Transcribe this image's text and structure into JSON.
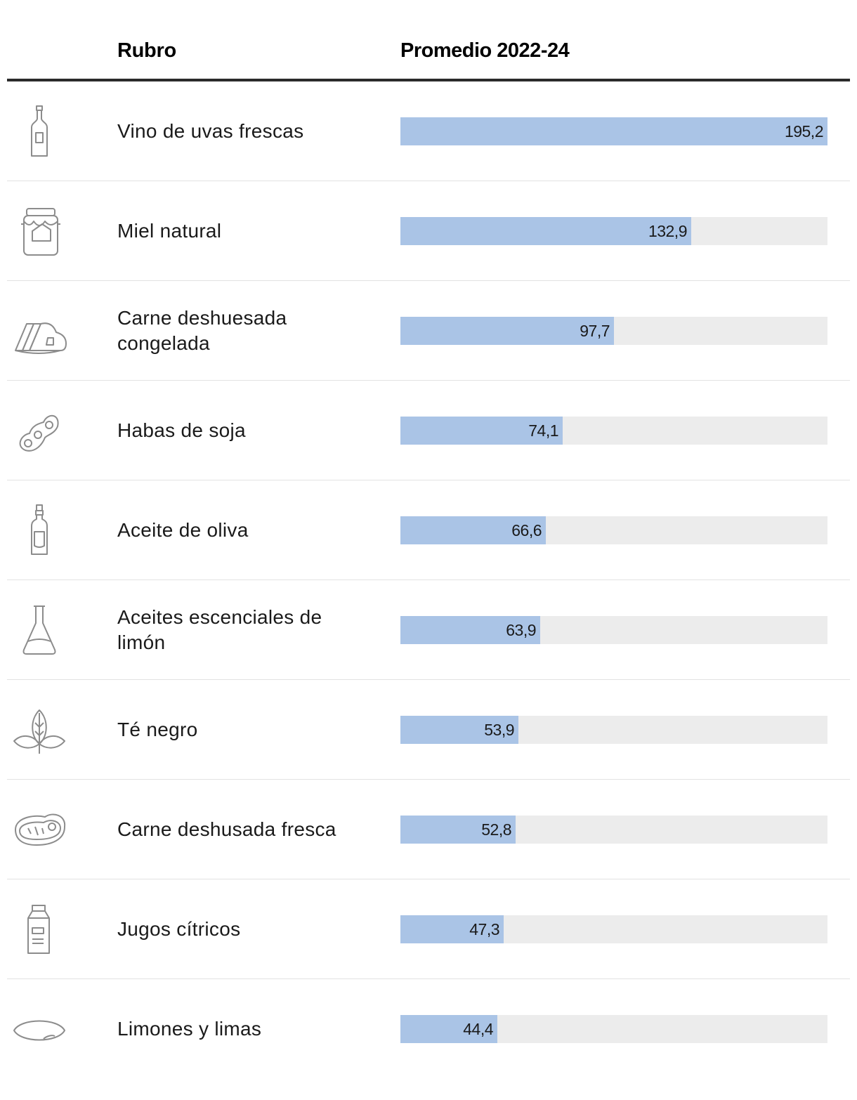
{
  "header": {
    "col_rubro": "Rubro",
    "col_value": "Promedio 2022-24"
  },
  "colors": {
    "bar": "#aac4e6",
    "track": "#ececec",
    "icon_stroke": "#8c8c8c"
  },
  "chart_data": {
    "type": "bar",
    "orientation": "horizontal",
    "xlim": [
      0,
      195.2
    ],
    "categories": [
      "Vino de uvas frescas",
      "Miel natural",
      "Carne deshuesada congelada",
      "Habas de soja",
      "Aceite de oliva",
      "Aceites escenciales de limón",
      "Té negro",
      "Carne deshusada fresca",
      "Jugos cítricos",
      "Limones y limas"
    ],
    "values": [
      195.2,
      132.9,
      97.7,
      74.1,
      66.6,
      63.9,
      53.9,
      52.8,
      47.3,
      44.4
    ],
    "value_labels": [
      "195,2",
      "132,9",
      "97,7",
      "74,1",
      "66,6",
      "63,9",
      "53,9",
      "52,8",
      "47,3",
      "44,4"
    ],
    "icons": [
      "wine-bottle-icon",
      "honey-jar-icon",
      "frozen-meat-icon",
      "soybean-icon",
      "olive-oil-bottle-icon",
      "flask-icon",
      "tea-leaves-icon",
      "steak-icon",
      "juice-carton-icon",
      "lemon-icon"
    ]
  }
}
